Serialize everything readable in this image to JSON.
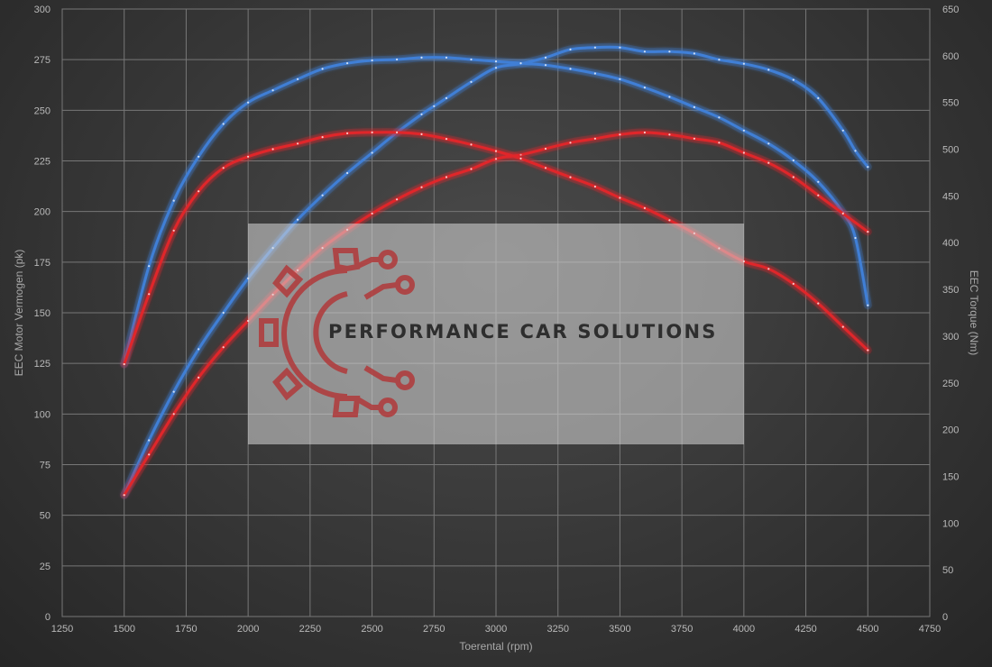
{
  "chart_data": {
    "type": "line",
    "xlabel": "Toerental (rpm)",
    "ylabel_left": "EEC Motor Vermogen (pk)",
    "ylabel_right": "EEC Torque (Nm)",
    "xlim": [
      1250,
      4750
    ],
    "ylim_left": [
      0,
      300
    ],
    "ylim_right": [
      0,
      650
    ],
    "x_ticks": [
      1250,
      1500,
      1750,
      2000,
      2250,
      2500,
      2750,
      3000,
      3250,
      3500,
      3750,
      4000,
      4250,
      4500,
      4750
    ],
    "y_ticks_left": [
      0,
      25,
      50,
      75,
      100,
      125,
      150,
      175,
      200,
      225,
      250,
      275,
      300
    ],
    "y_ticks_right": [
      0,
      50,
      100,
      150,
      200,
      250,
      300,
      350,
      400,
      450,
      500,
      550,
      600,
      650
    ],
    "grid": true,
    "series": [
      {
        "color": "#3f7fd6",
        "axis": "left",
        "x": [
          1500,
          1600,
          1700,
          1800,
          1900,
          2000,
          2100,
          2200,
          2300,
          2400,
          2500,
          2600,
          2700,
          2750,
          2800,
          2900,
          3000,
          3100,
          3200,
          3300,
          3400,
          3500,
          3600,
          3700,
          3800,
          3900,
          4000,
          4100,
          4200,
          4300,
          4400,
          4450,
          4500
        ],
        "values": [
          60,
          87,
          111,
          132,
          150,
          167,
          182,
          196,
          208,
          219,
          229,
          239,
          248,
          252,
          256,
          264,
          271,
          273,
          276,
          280,
          281,
          281,
          279,
          279,
          278,
          275,
          273,
          270,
          265,
          256,
          240,
          230,
          222
        ]
      },
      {
        "color": "#3f7fd6",
        "axis": "right",
        "x": [
          1500,
          1600,
          1700,
          1800,
          1900,
          2000,
          2100,
          2200,
          2300,
          2400,
          2500,
          2600,
          2700,
          2800,
          2900,
          3000,
          3100,
          3200,
          3300,
          3400,
          3500,
          3600,
          3700,
          3800,
          3900,
          4000,
          4100,
          4200,
          4300,
          4400,
          4450,
          4500
        ],
        "values": [
          270,
          375,
          445,
          492,
          527,
          550,
          563,
          575,
          586,
          592,
          595,
          596,
          598,
          598,
          596,
          594,
          592,
          590,
          586,
          581,
          575,
          566,
          556,
          545,
          534,
          520,
          506,
          488,
          465,
          432,
          405,
          333
        ]
      },
      {
        "color": "#e0262c",
        "axis": "left",
        "x": [
          1500,
          1600,
          1700,
          1800,
          1900,
          2000,
          2100,
          2200,
          2300,
          2400,
          2500,
          2600,
          2700,
          2800,
          2900,
          3000,
          3100,
          3200,
          3300,
          3400,
          3500,
          3600,
          3700,
          3800,
          3900,
          4000,
          4100,
          4200,
          4300,
          4400,
          4500
        ],
        "values": [
          60,
          80,
          100,
          118,
          133,
          146,
          159,
          171,
          182,
          191,
          199,
          206,
          212,
          217,
          221,
          226,
          228,
          231,
          234,
          236,
          238,
          239,
          238,
          236,
          234,
          229,
          224,
          217,
          208,
          199,
          190
        ]
      },
      {
        "color": "#e0262c",
        "axis": "right",
        "x": [
          1500,
          1600,
          1700,
          1800,
          1900,
          2000,
          2100,
          2200,
          2300,
          2400,
          2500,
          2600,
          2700,
          2800,
          2900,
          3000,
          3100,
          3200,
          3300,
          3400,
          3500,
          3600,
          3700,
          3800,
          3900,
          4000,
          4100,
          4200,
          4300,
          4400,
          4500
        ],
        "values": [
          270,
          345,
          413,
          455,
          480,
          492,
          500,
          506,
          513,
          517,
          518,
          518,
          516,
          511,
          505,
          498,
          490,
          480,
          470,
          460,
          448,
          437,
          424,
          410,
          394,
          380,
          372,
          356,
          335,
          310,
          285
        ]
      }
    ]
  },
  "watermark": {
    "text": "PERFORMANCE CAR SOLUTIONS",
    "logo_color": "#b1393a",
    "icon": "gear-circuit-icon"
  }
}
